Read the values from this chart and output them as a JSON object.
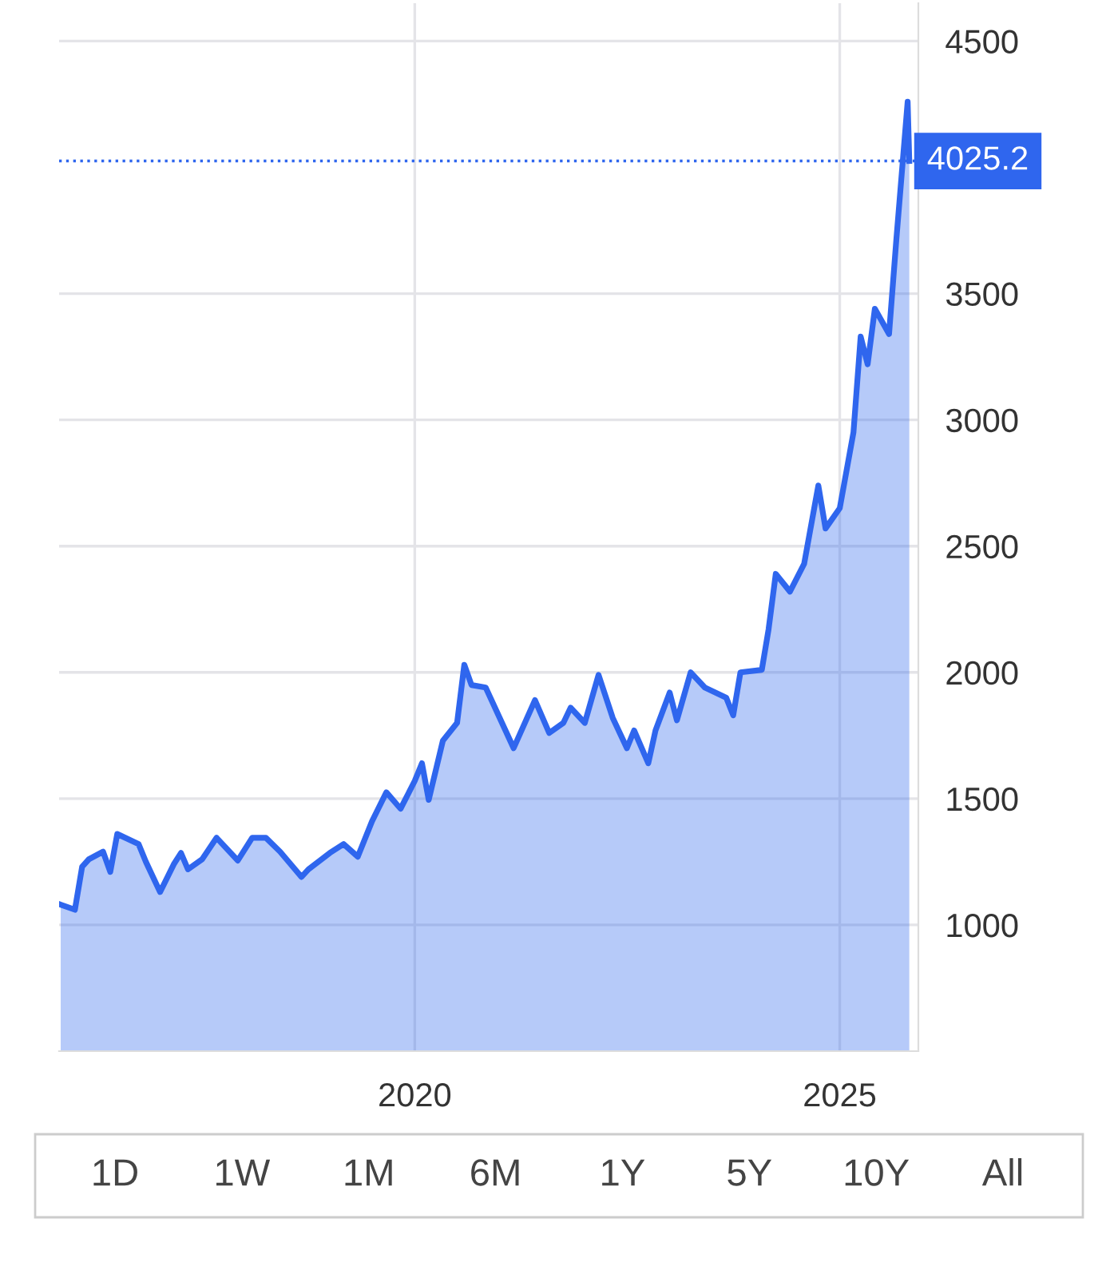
{
  "chart_data": {
    "type": "area",
    "x": [
      "2015-11",
      "2016-01",
      "2016-02",
      "2016-03",
      "2016-05",
      "2016-06",
      "2016-07",
      "2016-10",
      "2016-11",
      "2017-01",
      "2017-03",
      "2017-04",
      "2017-05",
      "2017-07",
      "2017-09",
      "2017-12",
      "2018-02",
      "2018-04",
      "2018-06",
      "2018-09",
      "2018-10",
      "2019-01",
      "2019-03",
      "2019-05",
      "2019-07",
      "2019-09",
      "2019-11",
      "2020-01",
      "2020-02",
      "2020-03",
      "2020-05",
      "2020-07",
      "2020-08",
      "2020-09",
      "2020-11",
      "2021-03",
      "2021-06",
      "2021-08",
      "2021-10",
      "2021-11",
      "2022-01",
      "2022-03",
      "2022-05",
      "2022-07",
      "2022-08",
      "2022-10",
      "2022-11",
      "2023-01",
      "2023-02",
      "2023-04",
      "2023-06",
      "2023-09",
      "2023-10",
      "2023-11",
      "2024-02",
      "2024-03",
      "2024-04",
      "2024-06",
      "2024-08",
      "2024-10",
      "2024-11",
      "2025-01",
      "2025-03",
      "2025-04",
      "2025-05",
      "2025-06",
      "2025-08",
      "2025-09",
      "2025-10-20",
      "2025-10-27"
    ],
    "series": [
      {
        "color": "#2f66ee",
        "values": [
          1080,
          1060,
          1230,
          1260,
          1290,
          1210,
          1360,
          1320,
          1250,
          1130,
          1240,
          1285,
          1220,
          1260,
          1345,
          1255,
          1345,
          1345,
          1290,
          1190,
          1220,
          1285,
          1320,
          1270,
          1410,
          1525,
          1460,
          1570,
          1640,
          1495,
          1730,
          1800,
          2030,
          1950,
          1940,
          1700,
          1890,
          1760,
          1800,
          1860,
          1800,
          1990,
          1820,
          1700,
          1770,
          1640,
          1770,
          1920,
          1810,
          2000,
          1940,
          1900,
          1830,
          2000,
          2010,
          2170,
          2390,
          2320,
          2430,
          2740,
          2570,
          2650,
          2950,
          3330,
          3220,
          3440,
          3340,
          3710,
          4260,
          4025.2
        ]
      }
    ],
    "xlim": [
      "2015-10-25",
      "2025-12-05"
    ],
    "xticks": [
      {
        "value": "2020-01-01",
        "label": "2020"
      },
      {
        "value": "2025-01-01",
        "label": "2025"
      }
    ],
    "ylim": [
      500,
      4650
    ],
    "yticks": [
      1000,
      1500,
      2000,
      2500,
      3000,
      3500,
      4500
    ],
    "grid": true,
    "ref_lines": [
      {
        "axis": "y",
        "value": 4025.2,
        "label": "4025.2",
        "color": "#2f66ee",
        "line_style": "dotted"
      }
    ],
    "annotations": [
      "1D",
      "1W",
      "1M",
      "6M",
      "1Y",
      "5Y",
      "10Y",
      "All"
    ]
  }
}
